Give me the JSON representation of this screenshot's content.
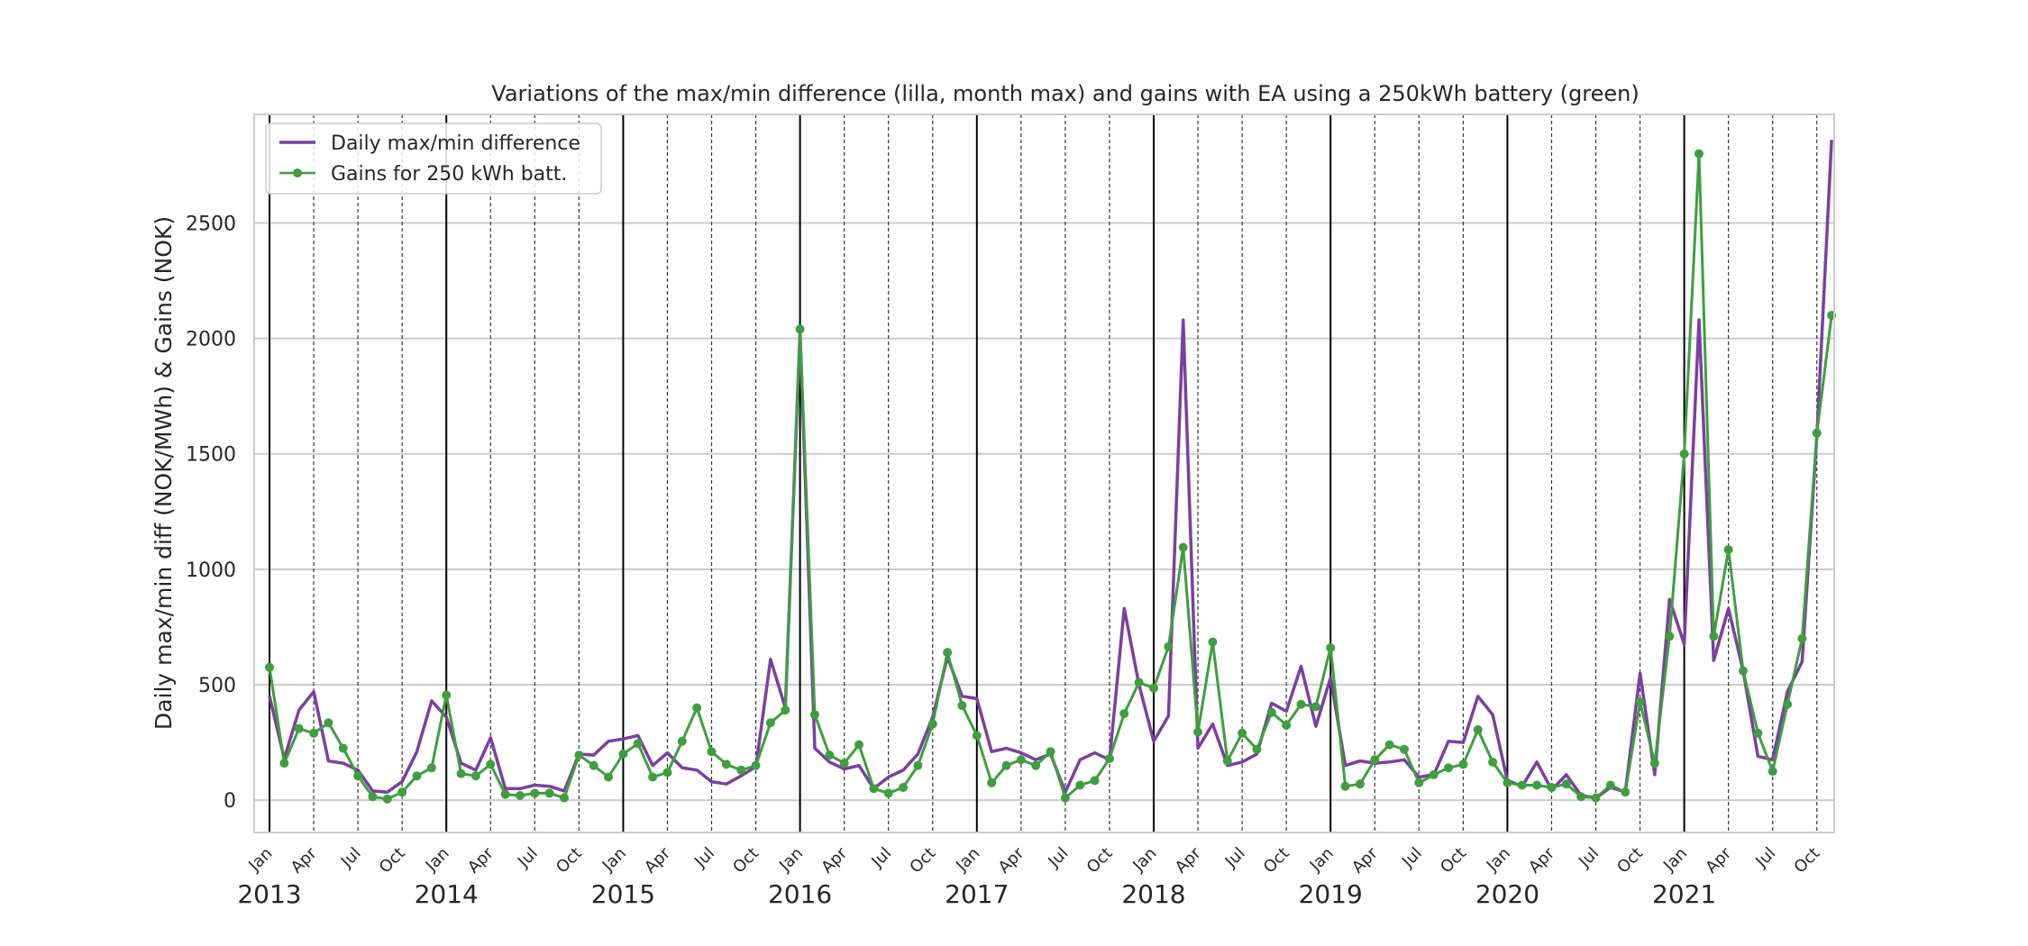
{
  "chart_data": {
    "type": "line",
    "title": "Variations of the max/min difference (lilla, month max) and gains with EA using a 250kWh battery (green)",
    "xlabel": "",
    "ylabel": "Daily max/min diff (NOK/MWh) & Gains (NOK)",
    "ylim": [
      -140,
      2970
    ],
    "yticks": [
      0,
      500,
      1000,
      1500,
      2000,
      2500
    ],
    "grid": true,
    "legend_position": "top-left",
    "start_year": 2013,
    "start_month": 1,
    "years": [
      "2013",
      "2014",
      "2015",
      "2016",
      "2017",
      "2018",
      "2019",
      "2020",
      "2021"
    ],
    "month_tick_labels": [
      "Jan",
      "Apr",
      "Jul",
      "Oct"
    ],
    "colors": {
      "max_min": "#7b3fa0",
      "gains": "#3f9e3f"
    },
    "series": [
      {
        "name": "Daily max/min difference",
        "marker": false,
        "values": [
          450,
          180,
          390,
          470,
          170,
          160,
          130,
          40,
          35,
          80,
          210,
          430,
          360,
          160,
          130,
          270,
          50,
          50,
          65,
          60,
          40,
          200,
          195,
          255,
          265,
          280,
          150,
          205,
          140,
          130,
          80,
          70,
          105,
          145,
          610,
          400,
          2030,
          225,
          165,
          135,
          150,
          50,
          100,
          130,
          200,
          360,
          620,
          450,
          440,
          210,
          225,
          205,
          175,
          200,
          35,
          175,
          205,
          175,
          830,
          500,
          255,
          365,
          2080,
          225,
          330,
          150,
          165,
          200,
          420,
          385,
          580,
          320,
          530,
          150,
          170,
          160,
          165,
          175,
          100,
          110,
          255,
          250,
          450,
          370,
          85,
          60,
          165,
          45,
          110,
          20,
          10,
          55,
          35,
          550,
          110,
          870,
          675,
          2080,
          605,
          830,
          560,
          190,
          175,
          470,
          600,
          1580,
          2860
        ]
      },
      {
        "name": "Gains for 250 kWh batt.",
        "marker": true,
        "values": [
          575,
          160,
          310,
          290,
          335,
          225,
          105,
          15,
          5,
          35,
          105,
          140,
          455,
          115,
          105,
          155,
          25,
          20,
          30,
          30,
          10,
          195,
          150,
          100,
          200,
          245,
          100,
          120,
          255,
          400,
          210,
          155,
          130,
          150,
          335,
          390,
          2040,
          370,
          195,
          160,
          240,
          50,
          30,
          55,
          150,
          330,
          640,
          410,
          280,
          75,
          150,
          175,
          150,
          210,
          10,
          65,
          85,
          180,
          375,
          510,
          485,
          665,
          1095,
          295,
          685,
          170,
          290,
          220,
          380,
          325,
          415,
          405,
          660,
          60,
          70,
          175,
          240,
          220,
          75,
          110,
          140,
          155,
          305,
          165,
          75,
          65,
          65,
          55,
          70,
          15,
          10,
          65,
          35,
          425,
          160,
          710,
          1500,
          2800,
          710,
          1085,
          560,
          290,
          125,
          415,
          700,
          1590,
          2100
        ]
      }
    ]
  }
}
